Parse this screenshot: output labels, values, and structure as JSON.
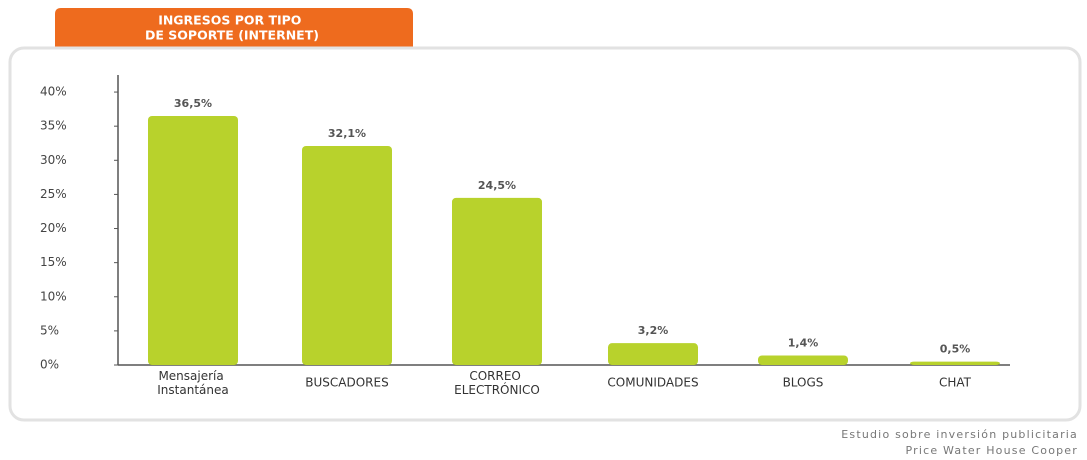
{
  "chart_data": {
    "type": "bar",
    "title": "INGRESOS POR TIPO DE SOPORTE (INTERNET)",
    "categories": [
      "Mensajería Instantánea",
      "BUSCADORES",
      "CORREO ELECTRÓNICO",
      "COMUNIDADES",
      "BLOGS",
      "CHAT"
    ],
    "values": [
      36.5,
      32.1,
      24.5,
      3.2,
      1.4,
      0.5
    ],
    "value_labels": [
      "36,5%",
      "32,1%",
      "24,5%",
      "3,2%",
      "1,4%",
      "0,5%"
    ],
    "color": "#b8d22c",
    "ylim": [
      0,
      42.5
    ],
    "yticks": [
      {
        "value": 0,
        "label": "0%"
      },
      {
        "value": 5,
        "label": "5%"
      },
      {
        "value": 10,
        "label": "10%"
      },
      {
        "value": 15,
        "label": "15%"
      },
      {
        "value": 20,
        "label": "20%"
      },
      {
        "value": 25,
        "label": "25%"
      },
      {
        "value": 30,
        "label": "30%"
      },
      {
        "value": 35,
        "label": "35%"
      },
      {
        "value": 40,
        "label": "40%"
      }
    ],
    "grid": false,
    "source": [
      "Estudio sobre inversión publicitaria",
      "Price Water House Cooper"
    ]
  }
}
